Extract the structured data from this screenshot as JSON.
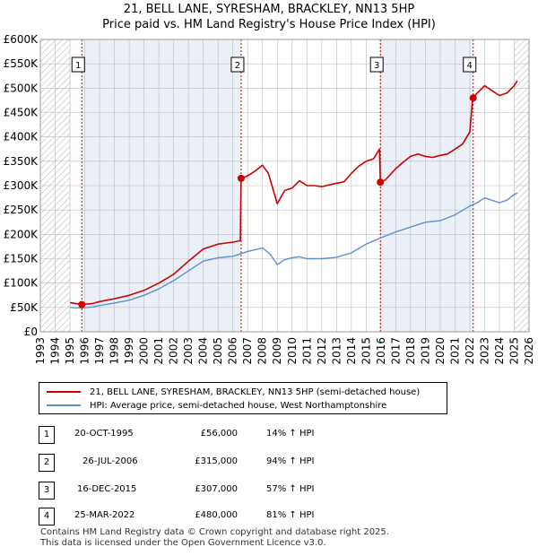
{
  "title_line1": "21, BELL LANE, SYRESHAM, BRACKLEY, NN13 5HP",
  "title_line2": "Price paid vs. HM Land Registry's House Price Index (HPI)",
  "legend": {
    "property_label": "21, BELL LANE, SYRESHAM, BRACKLEY, NN13 5HP (semi-detached house)",
    "hpi_label": "HPI: Average price, semi-detached house, West Northamptonshire"
  },
  "colors": {
    "property": "#cc0000",
    "hpi": "#5b8fcf",
    "shade": "#dbe4f3",
    "grid": "#bbbbbb",
    "marker_line": "#cc0000"
  },
  "transactions": [
    {
      "num": "1",
      "date": "20-OCT-1995",
      "price": "£56,000",
      "hpi": "14% ↑ HPI"
    },
    {
      "num": "2",
      "date": "26-JUL-2006",
      "price": "£315,000",
      "hpi": "94% ↑ HPI"
    },
    {
      "num": "3",
      "date": "16-DEC-2015",
      "price": "£307,000",
      "hpi": "57% ↑ HPI"
    },
    {
      "num": "4",
      "date": "25-MAR-2022",
      "price": "£480,000",
      "hpi": "81% ↑ HPI"
    }
  ],
  "footer_line1": "Contains HM Land Registry data © Crown copyright and database right 2025.",
  "footer_line2": "This data is licensed under the Open Government Licence v3.0.",
  "chart_data": {
    "type": "line",
    "title": "21, BELL LANE, SYRESHAM, BRACKLEY, NN13 5HP — Price paid vs. HM Land Registry's House Price Index (HPI)",
    "xlabel": "",
    "ylabel": "",
    "xlim": [
      1993,
      2026
    ],
    "ylim": [
      0,
      600000
    ],
    "x_ticks": [
      1993,
      1994,
      1995,
      1996,
      1997,
      1998,
      1999,
      2000,
      2001,
      2002,
      2003,
      2004,
      2005,
      2006,
      2007,
      2008,
      2009,
      2010,
      2011,
      2012,
      2013,
      2014,
      2015,
      2016,
      2017,
      2018,
      2019,
      2020,
      2021,
      2022,
      2023,
      2024,
      2025,
      2026
    ],
    "y_ticks": [
      0,
      50000,
      100000,
      150000,
      200000,
      250000,
      300000,
      350000,
      400000,
      450000,
      500000,
      550000,
      600000
    ],
    "y_tick_labels": [
      "£0",
      "£50K",
      "£100K",
      "£150K",
      "£200K",
      "£250K",
      "£300K",
      "£350K",
      "£400K",
      "£450K",
      "£500K",
      "£550K",
      "£600K"
    ],
    "hatched_ranges": [
      [
        1993,
        1995
      ],
      [
        2025,
        2026
      ]
    ],
    "sales": [
      {
        "label": "1",
        "x": 1995.8,
        "y": 56000
      },
      {
        "label": "2",
        "x": 2006.56,
        "y": 315000
      },
      {
        "label": "3",
        "x": 2015.96,
        "y": 307000
      },
      {
        "label": "4",
        "x": 2022.23,
        "y": 480000
      }
    ],
    "series": [
      {
        "name": "21, BELL LANE, SYRESHAM, BRACKLEY, NN13 5HP (semi-detached house)",
        "points": [
          [
            1995.0,
            60000
          ],
          [
            1995.8,
            56000
          ],
          [
            1996.5,
            58000
          ],
          [
            1997,
            62000
          ],
          [
            1998,
            68000
          ],
          [
            1999,
            75000
          ],
          [
            2000,
            85000
          ],
          [
            2001,
            100000
          ],
          [
            2002,
            118000
          ],
          [
            2003,
            145000
          ],
          [
            2004,
            170000
          ],
          [
            2005,
            180000
          ],
          [
            2006,
            184000
          ],
          [
            2006.5,
            187000
          ],
          [
            2006.56,
            315000
          ],
          [
            2007,
            320000
          ],
          [
            2007.5,
            330000
          ],
          [
            2008,
            342000
          ],
          [
            2008.4,
            325000
          ],
          [
            2009,
            263000
          ],
          [
            2009.5,
            290000
          ],
          [
            2010,
            295000
          ],
          [
            2010.5,
            310000
          ],
          [
            2011,
            300000
          ],
          [
            2011.5,
            300000
          ],
          [
            2012,
            298000
          ],
          [
            2013,
            305000
          ],
          [
            2013.5,
            308000
          ],
          [
            2014,
            325000
          ],
          [
            2014.5,
            340000
          ],
          [
            2015,
            350000
          ],
          [
            2015.5,
            355000
          ],
          [
            2015.9,
            375000
          ],
          [
            2015.96,
            307000
          ],
          [
            2016.3,
            312000
          ],
          [
            2016.7,
            325000
          ],
          [
            2017,
            335000
          ],
          [
            2017.5,
            348000
          ],
          [
            2018,
            360000
          ],
          [
            2018.5,
            365000
          ],
          [
            2019,
            360000
          ],
          [
            2019.5,
            358000
          ],
          [
            2020,
            362000
          ],
          [
            2020.5,
            365000
          ],
          [
            2021,
            375000
          ],
          [
            2021.5,
            385000
          ],
          [
            2022.0,
            410000
          ],
          [
            2022.2,
            480000
          ],
          [
            2022.5,
            490000
          ],
          [
            2023,
            505000
          ],
          [
            2023.5,
            495000
          ],
          [
            2024,
            485000
          ],
          [
            2024.5,
            490000
          ],
          [
            2025,
            505000
          ],
          [
            2025.2,
            515000
          ]
        ]
      },
      {
        "name": "HPI: Average price, semi-detached house, West Northamptonshire",
        "points": [
          [
            1995.0,
            50000
          ],
          [
            1995.8,
            49000
          ],
          [
            1996.5,
            51000
          ],
          [
            1997,
            54000
          ],
          [
            1998,
            59000
          ],
          [
            1999,
            65000
          ],
          [
            2000,
            75000
          ],
          [
            2001,
            88000
          ],
          [
            2002,
            105000
          ],
          [
            2003,
            125000
          ],
          [
            2004,
            145000
          ],
          [
            2005,
            152000
          ],
          [
            2006,
            155000
          ],
          [
            2007,
            165000
          ],
          [
            2008,
            172000
          ],
          [
            2008.5,
            160000
          ],
          [
            2009,
            138000
          ],
          [
            2009.5,
            148000
          ],
          [
            2010,
            152000
          ],
          [
            2010.5,
            154000
          ],
          [
            2011,
            150000
          ],
          [
            2012,
            150000
          ],
          [
            2013,
            153000
          ],
          [
            2014,
            162000
          ],
          [
            2015,
            180000
          ],
          [
            2016,
            193000
          ],
          [
            2017,
            205000
          ],
          [
            2018,
            215000
          ],
          [
            2019,
            225000
          ],
          [
            2020,
            228000
          ],
          [
            2021,
            240000
          ],
          [
            2022,
            258000
          ],
          [
            2022.5,
            265000
          ],
          [
            2023,
            275000
          ],
          [
            2023.5,
            270000
          ],
          [
            2024,
            265000
          ],
          [
            2024.5,
            270000
          ],
          [
            2025,
            282000
          ],
          [
            2025.2,
            285000
          ]
        ]
      }
    ]
  }
}
